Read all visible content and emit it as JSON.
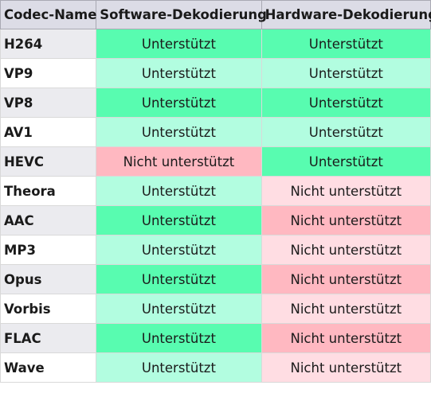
{
  "headers": [
    "Codec-Name",
    "Software-Dekodierung",
    "Hardware-Dekodierung"
  ],
  "status_labels": {
    "supported": "Unterstützt",
    "unsupported": "Nicht unterstützt"
  },
  "colors": {
    "header_bg": "#dcdce6",
    "supported_strong": "#58fcb0",
    "supported_light": "#b2fde0",
    "unsupported_strong": "#ffb8c1",
    "unsupported_light": "#ffdde3"
  },
  "rows": [
    {
      "name": "H264",
      "software": "Unterstützt",
      "hardware": "Unterstützt"
    },
    {
      "name": "VP9",
      "software": "Unterstützt",
      "hardware": "Unterstützt"
    },
    {
      "name": "VP8",
      "software": "Unterstützt",
      "hardware": "Unterstützt"
    },
    {
      "name": "AV1",
      "software": "Unterstützt",
      "hardware": "Unterstützt"
    },
    {
      "name": "HEVC",
      "software": "Nicht unterstützt",
      "hardware": "Unterstützt"
    },
    {
      "name": "Theora",
      "software": "Unterstützt",
      "hardware": "Nicht unterstützt"
    },
    {
      "name": "AAC",
      "software": "Unterstützt",
      "hardware": "Nicht unterstützt"
    },
    {
      "name": "MP3",
      "software": "Unterstützt",
      "hardware": "Nicht unterstützt"
    },
    {
      "name": "Opus",
      "software": "Unterstützt",
      "hardware": "Nicht unterstützt"
    },
    {
      "name": "Vorbis",
      "software": "Unterstützt",
      "hardware": "Nicht unterstützt"
    },
    {
      "name": "FLAC",
      "software": "Unterstützt",
      "hardware": "Nicht unterstützt"
    },
    {
      "name": "Wave",
      "software": "Unterstützt",
      "hardware": "Nicht unterstützt"
    }
  ]
}
